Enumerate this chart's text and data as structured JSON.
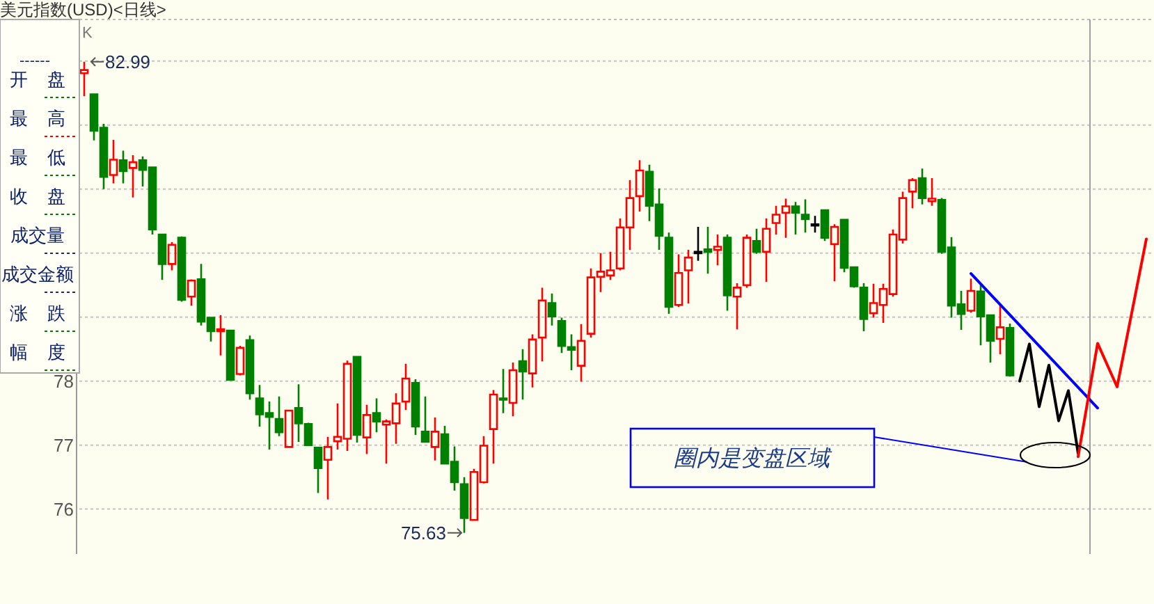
{
  "chart_data": [
    {
      "type": "candlestick",
      "title": "美元指数(USD)<日线>",
      "categories": [
        null,
        null,
        null,
        null,
        null,
        null,
        null,
        null,
        null,
        null,
        null,
        null,
        null,
        null,
        null,
        null,
        null,
        null,
        null,
        null,
        null,
        null,
        null,
        null,
        null,
        null,
        null,
        null,
        null,
        null,
        null,
        null,
        null,
        null,
        null,
        null,
        null,
        null,
        null,
        null,
        null,
        null,
        null,
        null,
        null,
        null,
        null,
        null,
        null,
        null,
        null,
        null,
        null,
        null,
        null,
        null,
        null,
        null,
        null,
        null,
        null,
        null,
        null,
        null,
        null,
        null,
        null,
        null,
        null,
        null,
        null,
        null,
        null,
        null,
        null,
        null,
        null,
        null,
        null,
        null,
        null,
        null,
        null,
        null,
        null,
        null,
        null,
        null,
        null,
        null,
        null,
        null,
        null,
        null,
        null,
        null,
        null,
        null,
        null,
        null,
        null,
        null,
        null,
        null,
        null,
        null,
        null,
        null,
        null,
        null
      ],
      "ohlc": [
        [
          82.81,
          82.99,
          82.45,
          82.86
        ],
        [
          82.48,
          82.48,
          81.76,
          81.91
        ],
        [
          81.96,
          82.02,
          81.0,
          81.19
        ],
        [
          81.22,
          81.77,
          81.09,
          81.46
        ],
        [
          81.45,
          81.6,
          81.09,
          81.28
        ],
        [
          81.33,
          81.53,
          80.87,
          81.42
        ],
        [
          81.45,
          81.51,
          81.04,
          81.3
        ],
        [
          81.34,
          81.34,
          80.29,
          80.37
        ],
        [
          80.29,
          80.3,
          79.58,
          79.83
        ],
        [
          79.83,
          80.17,
          79.73,
          80.13
        ],
        [
          80.24,
          80.26,
          79.24,
          79.27
        ],
        [
          79.32,
          79.59,
          79.18,
          79.57
        ],
        [
          79.59,
          79.83,
          78.87,
          78.93
        ],
        [
          78.99,
          79.0,
          78.62,
          78.78
        ],
        [
          78.78,
          79.03,
          78.4,
          78.81
        ],
        [
          78.79,
          78.79,
          78.02,
          78.02
        ],
        [
          78.11,
          78.55,
          78.09,
          78.52
        ],
        [
          78.64,
          78.71,
          77.71,
          77.81
        ],
        [
          77.73,
          77.94,
          77.29,
          77.48
        ],
        [
          77.5,
          77.68,
          76.93,
          77.44
        ],
        [
          77.41,
          77.76,
          77.14,
          77.2
        ],
        [
          76.97,
          77.55,
          76.97,
          77.54
        ],
        [
          77.58,
          77.95,
          77.05,
          77.34
        ],
        [
          77.33,
          77.35,
          76.99,
          77.0
        ],
        [
          76.96,
          76.96,
          76.25,
          76.64
        ],
        [
          76.77,
          77.13,
          76.15,
          76.97
        ],
        [
          77.06,
          77.65,
          76.93,
          77.13
        ],
        [
          77.1,
          78.32,
          76.91,
          78.27
        ],
        [
          78.38,
          78.38,
          77.04,
          77.16
        ],
        [
          77.12,
          77.63,
          76.86,
          77.47
        ],
        [
          77.5,
          77.73,
          77.2,
          77.37
        ],
        [
          77.32,
          77.4,
          76.71,
          77.37
        ],
        [
          77.34,
          77.81,
          77.02,
          77.65
        ],
        [
          77.68,
          78.27,
          77.55,
          78.04
        ],
        [
          77.97,
          78.03,
          77.16,
          77.29
        ],
        [
          77.21,
          77.76,
          77.05,
          77.05
        ],
        [
          76.97,
          77.43,
          76.76,
          77.21
        ],
        [
          77.17,
          77.3,
          76.71,
          76.71
        ],
        [
          76.74,
          76.98,
          76.29,
          76.42
        ],
        [
          76.39,
          76.5,
          75.63,
          75.86
        ],
        [
          75.83,
          76.63,
          75.83,
          76.58
        ],
        [
          76.42,
          77.14,
          76.4,
          76.99
        ],
        [
          77.25,
          77.86,
          76.71,
          77.79
        ],
        [
          77.73,
          78.19,
          77.5,
          77.71
        ],
        [
          77.66,
          78.29,
          77.45,
          78.17
        ],
        [
          78.31,
          78.5,
          77.71,
          78.15
        ],
        [
          78.12,
          78.73,
          77.9,
          78.65
        ],
        [
          78.68,
          79.46,
          78.31,
          79.26
        ],
        [
          79.22,
          79.37,
          78.87,
          79.01
        ],
        [
          78.94,
          78.99,
          78.44,
          78.55
        ],
        [
          78.53,
          78.73,
          78.17,
          78.49
        ],
        [
          78.24,
          78.89,
          77.99,
          78.63
        ],
        [
          78.74,
          79.76,
          78.68,
          79.62
        ],
        [
          79.63,
          80.0,
          79.39,
          79.71
        ],
        [
          79.65,
          80.02,
          79.58,
          79.73
        ],
        [
          79.76,
          80.54,
          79.73,
          80.4
        ],
        [
          80.4,
          81.14,
          80.05,
          80.86
        ],
        [
          80.89,
          81.45,
          80.65,
          81.29
        ],
        [
          81.27,
          81.38,
          80.5,
          80.74
        ],
        [
          80.76,
          81.01,
          80.05,
          80.27
        ],
        [
          80.24,
          80.32,
          79.05,
          79.16
        ],
        [
          79.19,
          79.98,
          79.16,
          79.69
        ],
        [
          79.73,
          80.05,
          79.21,
          79.93
        ],
        [
          80.02,
          80.41,
          79.88,
          80.02
        ],
        [
          80.06,
          80.41,
          79.68,
          80.02
        ],
        [
          80.05,
          80.29,
          79.81,
          80.1
        ],
        [
          80.24,
          80.29,
          79.1,
          79.34
        ],
        [
          79.32,
          79.53,
          78.81,
          79.46
        ],
        [
          79.5,
          80.29,
          79.46,
          80.24
        ],
        [
          80.19,
          80.38,
          79.99,
          80.02
        ],
        [
          80.02,
          80.54,
          79.55,
          80.38
        ],
        [
          80.47,
          80.74,
          80.29,
          80.6
        ],
        [
          80.63,
          80.85,
          80.24,
          80.73
        ],
        [
          80.73,
          80.8,
          80.29,
          80.63
        ],
        [
          80.6,
          80.84,
          80.32,
          80.53
        ],
        [
          80.45,
          80.58,
          80.32,
          80.45
        ],
        [
          80.67,
          80.67,
          80.19,
          80.24
        ],
        [
          80.14,
          80.45,
          79.56,
          80.41
        ],
        [
          80.52,
          80.52,
          79.7,
          79.77
        ],
        [
          79.78,
          79.78,
          79.46,
          79.48
        ],
        [
          79.46,
          79.53,
          78.78,
          78.97
        ],
        [
          79.06,
          79.52,
          78.99,
          79.22
        ],
        [
          79.19,
          79.52,
          78.91,
          79.44
        ],
        [
          79.36,
          80.37,
          79.32,
          80.29
        ],
        [
          80.21,
          80.96,
          80.15,
          80.86
        ],
        [
          80.96,
          81.17,
          80.7,
          81.14
        ],
        [
          81.17,
          81.32,
          80.76,
          80.86
        ],
        [
          80.81,
          81.17,
          80.74,
          80.85
        ],
        [
          80.83,
          80.86,
          79.99,
          80.02
        ],
        [
          80.09,
          80.25,
          78.99,
          79.18
        ],
        [
          79.2,
          79.41,
          78.8,
          79.05
        ],
        [
          79.1,
          79.6,
          79.07,
          79.41
        ],
        [
          79.4,
          79.52,
          78.56,
          79.01
        ],
        [
          79.03,
          79.03,
          78.29,
          78.63
        ],
        [
          78.66,
          79.19,
          78.42,
          78.84
        ],
        [
          78.83,
          78.9,
          78.07,
          78.09
        ],
        null,
        null,
        null,
        null,
        null,
        null,
        null,
        null,
        null,
        null,
        null,
        null,
        null,
        null
      ],
      "colors": [
        "#ff0000",
        "#008000",
        "#008000",
        "#ff0000",
        "#008000",
        "#ff0000",
        "#008000",
        "#008000",
        "#008000",
        "#ff0000",
        "#008000",
        "#ff0000",
        "#008000",
        "#008000",
        "#ff0000",
        "#008000",
        "#ff0000",
        "#008000",
        "#008000",
        "#008000",
        "#008000",
        "#ff0000",
        "#008000",
        "#008000",
        "#008000",
        "#ff0000",
        "#ff0000",
        "#ff0000",
        "#008000",
        "#ff0000",
        "#008000",
        "#ff0000",
        "#ff0000",
        "#ff0000",
        "#008000",
        "#008000",
        "#ff0000",
        "#008000",
        "#008000",
        "#008000",
        "#ff0000",
        "#ff0000",
        "#ff0000",
        "#008000",
        "#ff0000",
        "#008000",
        "#ff0000",
        "#ff0000",
        "#008000",
        "#008000",
        "#008000",
        "#ff0000",
        "#ff0000",
        "#ff0000",
        "#ff0000",
        "#ff0000",
        "#ff0000",
        "#ff0000",
        "#008000",
        "#008000",
        "#008000",
        "#ff0000",
        "#ff0000",
        "#000000",
        "#008000",
        "#ff0000",
        "#008000",
        "#ff0000",
        "#ff0000",
        "#008000",
        "#ff0000",
        "#ff0000",
        "#ff0000",
        "#008000",
        "#008000",
        "#000000",
        "#008000",
        "#ff0000",
        "#008000",
        "#008000",
        "#008000",
        "#ff0000",
        "#ff0000",
        "#ff0000",
        "#ff0000",
        "#ff0000",
        "#008000",
        "#ff0000",
        "#008000",
        "#008000",
        "#008000",
        "#ff0000",
        "#008000",
        "#008000",
        "#ff0000",
        "#008000",
        null,
        null,
        null,
        null,
        null,
        null,
        null,
        null,
        null,
        null,
        null,
        null,
        null,
        null
      ],
      "series": [
        {
          "type": "line",
          "color": "#0000ff",
          "values": [
            null,
            null,
            null,
            null,
            null,
            null,
            null,
            null,
            null,
            null,
            null,
            null,
            null,
            null,
            null,
            null,
            null,
            null,
            null,
            null,
            null,
            null,
            null,
            null,
            null,
            null,
            null,
            null,
            null,
            null,
            null,
            null,
            null,
            null,
            null,
            null,
            null,
            null,
            null,
            null,
            null,
            null,
            null,
            null,
            null,
            null,
            null,
            null,
            null,
            null,
            null,
            null,
            null,
            null,
            null,
            null,
            null,
            null,
            null,
            null,
            null,
            null,
            null,
            null,
            null,
            null,
            null,
            null,
            null,
            null,
            null,
            null,
            null,
            null,
            null,
            null,
            null,
            null,
            null,
            null,
            null,
            null,
            null,
            null,
            null,
            null,
            null,
            null,
            null,
            null,
            null,
            79.68,
            null,
            null,
            null,
            null,
            null,
            null,
            null,
            null,
            null,
            null,
            null,
            null,
            77.58,
            null,
            null,
            null,
            null,
            null
          ]
        },
        {
          "type": "line",
          "color": "#000000",
          "values": [
            null,
            null,
            null,
            null,
            null,
            null,
            null,
            null,
            null,
            null,
            null,
            null,
            null,
            null,
            null,
            null,
            null,
            null,
            null,
            null,
            null,
            null,
            null,
            null,
            null,
            null,
            null,
            null,
            null,
            null,
            null,
            null,
            null,
            null,
            null,
            null,
            null,
            null,
            null,
            null,
            null,
            null,
            null,
            null,
            null,
            null,
            null,
            null,
            null,
            null,
            null,
            null,
            null,
            null,
            null,
            null,
            null,
            null,
            null,
            null,
            null,
            null,
            null,
            null,
            null,
            null,
            null,
            null,
            null,
            null,
            null,
            null,
            null,
            null,
            null,
            null,
            null,
            null,
            null,
            null,
            null,
            null,
            null,
            null,
            null,
            null,
            null,
            null,
            null,
            null,
            null,
            null,
            null,
            null,
            null,
            null,
            78.0,
            78.58,
            77.6,
            78.25,
            77.38,
            77.85,
            76.87,
            null,
            null,
            null,
            null,
            null,
            null,
            null
          ]
        },
        {
          "type": "line",
          "color": "#ff0000",
          "values": [
            null,
            null,
            null,
            null,
            null,
            null,
            null,
            null,
            null,
            null,
            null,
            null,
            null,
            null,
            null,
            null,
            null,
            null,
            null,
            null,
            null,
            null,
            null,
            null,
            null,
            null,
            null,
            null,
            null,
            null,
            null,
            null,
            null,
            null,
            null,
            null,
            null,
            null,
            null,
            null,
            null,
            null,
            null,
            null,
            null,
            null,
            null,
            null,
            null,
            null,
            null,
            null,
            null,
            null,
            null,
            null,
            null,
            null,
            null,
            null,
            null,
            null,
            null,
            null,
            null,
            null,
            null,
            null,
            null,
            null,
            null,
            null,
            null,
            null,
            null,
            null,
            null,
            null,
            null,
            null,
            null,
            null,
            null,
            null,
            null,
            null,
            null,
            null,
            null,
            null,
            null,
            null,
            null,
            null,
            null,
            null,
            null,
            null,
            null,
            null,
            null,
            null,
            76.82,
            null,
            78.59,
            null,
            77.91,
            null,
            null,
            80.22
          ]
        }
      ],
      "ylim": [
        75.3,
        83.65
      ],
      "yticks": [
        76,
        77,
        78,
        {
          "value": 79,
          "label": null
        },
        {
          "value": 80,
          "label": null
        },
        {
          "value": 81,
          "label": null
        },
        {
          "value": 82,
          "label": null
        },
        {
          "value": 83,
          "label": null
        }
      ],
      "grid": "y",
      "tick_labels": "y",
      "annotations": [
        "K",
        "圈内是变盘区域",
        "82.99",
        "75.63"
      ]
    },
    {
      "type": "other",
      "annotations": [
        "------",
        "开 盘",
        "最 高",
        "最 低",
        "收 盘",
        "成交量",
        "成交金额",
        "涨 跌",
        "幅 度"
      ]
    }
  ]
}
